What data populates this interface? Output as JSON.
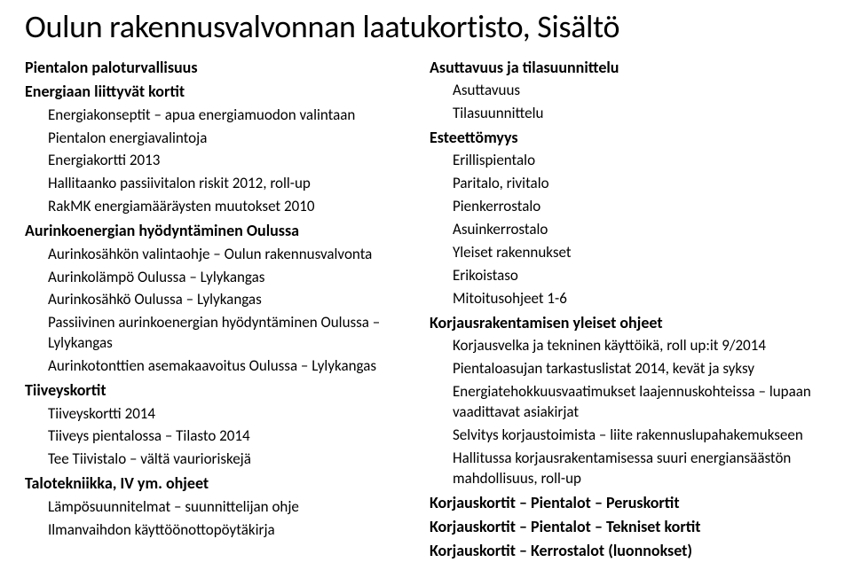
{
  "title": "Oulun rakennusvalvonnan laatukortisto, Sisältö",
  "left": {
    "s1": {
      "h": "Pientalon paloturvallisuus"
    },
    "s2": {
      "h": "Energiaan liittyvät kortit",
      "i1": "Energiakonseptit – apua energiamuodon valintaan",
      "i2": "Pientalon energiavalintoja",
      "i3": "Energiakortti 2013",
      "i4": "Hallitaanko passiivitalon riskit 2012, roll-up",
      "i5": "RakMK energiamääräysten muutokset 2010"
    },
    "s3": {
      "h": "Aurinkoenergian hyödyntäminen Oulussa",
      "i1": "Aurinkosähkön valintaohje – Oulun rakennusvalvonta",
      "i2": "Aurinkolämpö Oulussa – Lylykangas",
      "i3": "Aurinkosähkö Oulussa – Lylykangas",
      "i4": "Passiivinen aurinkoenergian hyödyntäminen Oulussa – Lylykangas",
      "i5": "Aurinkotonttien asemakaavoitus Oulussa – Lylykangas"
    },
    "s4": {
      "h": "Tiiveyskortit",
      "i1": "Tiiveyskortti 2014",
      "i2": "Tiiveys pientalossa – Tilasto 2014",
      "i3": "Tee Tiivistalo – vältä vaurioriskejä"
    },
    "s5": {
      "h": "Talotekniikka, IV ym. ohjeet",
      "i1": "Lämpösuunnitelmat – suunnittelijan ohje",
      "i2": "Ilmanvaihdon käyttöönottopöytäkirja"
    }
  },
  "right": {
    "s1": {
      "h": "Asuttavuus ja tilasuunnittelu",
      "i1": "Asuttavuus",
      "i2": "Tilasuunnittelu"
    },
    "s2": {
      "h": "Esteettömyys",
      "i1": "Erillispientalo",
      "i2": "Paritalo, rivitalo",
      "i3": "Pienkerrostalo",
      "i4": "Asuinkerrostalo",
      "i5": "Yleiset rakennukset",
      "i6": "Erikoistaso",
      "i7": "Mitoitusohjeet 1-6"
    },
    "s3": {
      "h": "Korjausrakentamisen yleiset ohjeet",
      "i1": "Korjausvelka ja tekninen käyttöikä, roll up:it 9/2014",
      "i2": "Pientaloasujan tarkastuslistat 2014, kevät ja syksy",
      "i3": "Energiatehokkuusvaatimukset laajennuskohteissa – lupaan vaadittavat asiakirjat",
      "i4": "Selvitys korjaustoimista – liite rakennuslupahakemukseen",
      "i5": "Hallitussa korjausrakentamisessa suuri energiansäästön mahdollisuus, roll-up"
    },
    "s4": {
      "h": "Korjauskortit – Pientalot – Peruskortit"
    },
    "s5": {
      "h": "Korjauskortit – Pientalot – Tekniset kortit"
    },
    "s6": {
      "h": "Korjauskortit – Kerrostalot (luonnokset)"
    }
  }
}
